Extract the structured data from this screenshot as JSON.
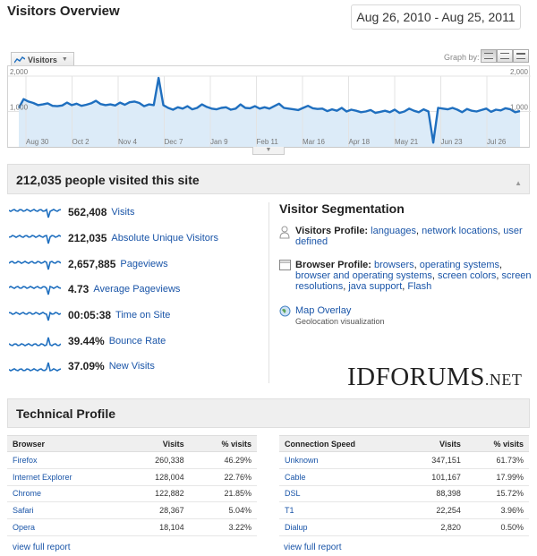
{
  "header": {
    "title": "Visitors Overview",
    "date_range": "Aug 26, 2010 - Aug 25, 2011"
  },
  "chart_controls": {
    "metric_tab": "Visitors",
    "graph_by_label": "Graph by:"
  },
  "chart_data": {
    "type": "area",
    "series": [
      {
        "name": "Visitors",
        "values": [
          1100,
          1350,
          1280,
          1240,
          1180,
          1200,
          1230,
          1160,
          1150,
          1170,
          1250,
          1180,
          1220,
          1160,
          1190,
          1230,
          1300,
          1210,
          1180,
          1200,
          1170,
          1250,
          1190,
          1260,
          1280,
          1240,
          1150,
          1200,
          1180,
          1950,
          1180,
          1100,
          1050,
          1120,
          1080,
          1150,
          1060,
          1100,
          1200,
          1130,
          1080,
          1060,
          1100,
          1120,
          1050,
          1080,
          1200,
          1100,
          1090,
          1150,
          1080,
          1120,
          1080,
          1150,
          1220,
          1100,
          1080,
          1060,
          1040,
          1100,
          1160,
          1090,
          1070,
          1080,
          1010,
          1060,
          1020,
          1100,
          1000,
          1050,
          1020,
          980,
          1000,
          1040,
          960,
          990,
          1020,
          980,
          1050,
          960,
          1000,
          1080,
          1020,
          980,
          1060,
          1000,
          120,
          1100,
          1080,
          1060,
          1100,
          1050,
          980,
          1070,
          1020,
          1000,
          1040,
          1080,
          990,
          1050,
          1030,
          1090,
          1060,
          980,
          1010
        ]
      }
    ],
    "y_ticks": [
      "2,000",
      "1,000"
    ],
    "ylim": [
      0,
      2000
    ],
    "x_labels": [
      "Aug 30",
      "Oct 2",
      "Nov 4",
      "Dec 7",
      "Jan 9",
      "Feb 11",
      "Mar 16",
      "Apr 18",
      "May 21",
      "Jun 23",
      "Jul 26"
    ],
    "y_tick_right": [
      "2,000",
      "1,000"
    ],
    "grid": true
  },
  "summary": {
    "heading": "212,035 people visited this site"
  },
  "metrics": [
    {
      "value": "562,408",
      "label": "Visits"
    },
    {
      "value": "212,035",
      "label": "Absolute Unique Visitors"
    },
    {
      "value": "2,657,885",
      "label": "Pageviews"
    },
    {
      "value": "4.73",
      "label": "Average Pageviews"
    },
    {
      "value": "00:05:38",
      "label": "Time on Site"
    },
    {
      "value": "39.44%",
      "label": "Bounce Rate"
    },
    {
      "value": "37.09%",
      "label": "New Visits"
    }
  ],
  "segmentation": {
    "title": "Visitor Segmentation",
    "visitors_profile": {
      "label": "Visitors Profile:",
      "links": [
        "languages",
        "network locations",
        "user defined"
      ]
    },
    "browser_profile": {
      "label": "Browser Profile:",
      "links": [
        "browsers",
        "operating systems",
        "browser and operating systems",
        "screen colors",
        "screen resolutions",
        "java support",
        "Flash"
      ]
    },
    "map_overlay": {
      "label": "Map Overlay",
      "description": "Geolocation visualization"
    }
  },
  "watermark": {
    "main": "IDFORUMS",
    "suffix": ".NET"
  },
  "technical": {
    "heading": "Technical Profile",
    "browser_table": {
      "headers": [
        "Browser",
        "Visits",
        "% visits"
      ],
      "rows": [
        [
          "Firefox",
          "260,338",
          "46.29%"
        ],
        [
          "Internet Explorer",
          "128,004",
          "22.76%"
        ],
        [
          "Chrome",
          "122,882",
          "21.85%"
        ],
        [
          "Safari",
          "28,367",
          "5.04%"
        ],
        [
          "Opera",
          "18,104",
          "3.22%"
        ]
      ],
      "footer": "view full report"
    },
    "connection_table": {
      "headers": [
        "Connection Speed",
        "Visits",
        "% visits"
      ],
      "rows": [
        [
          "Unknown",
          "347,151",
          "61.73%"
        ],
        [
          "Cable",
          "101,167",
          "17.99%"
        ],
        [
          "DSL",
          "88,398",
          "15.72%"
        ],
        [
          "T1",
          "22,254",
          "3.96%"
        ],
        [
          "Dialup",
          "2,820",
          "0.50%"
        ]
      ],
      "footer": "view full report"
    }
  },
  "colors": {
    "line": "#1f6fbf",
    "fill": "#dcebf8",
    "link": "#1a55a8"
  }
}
